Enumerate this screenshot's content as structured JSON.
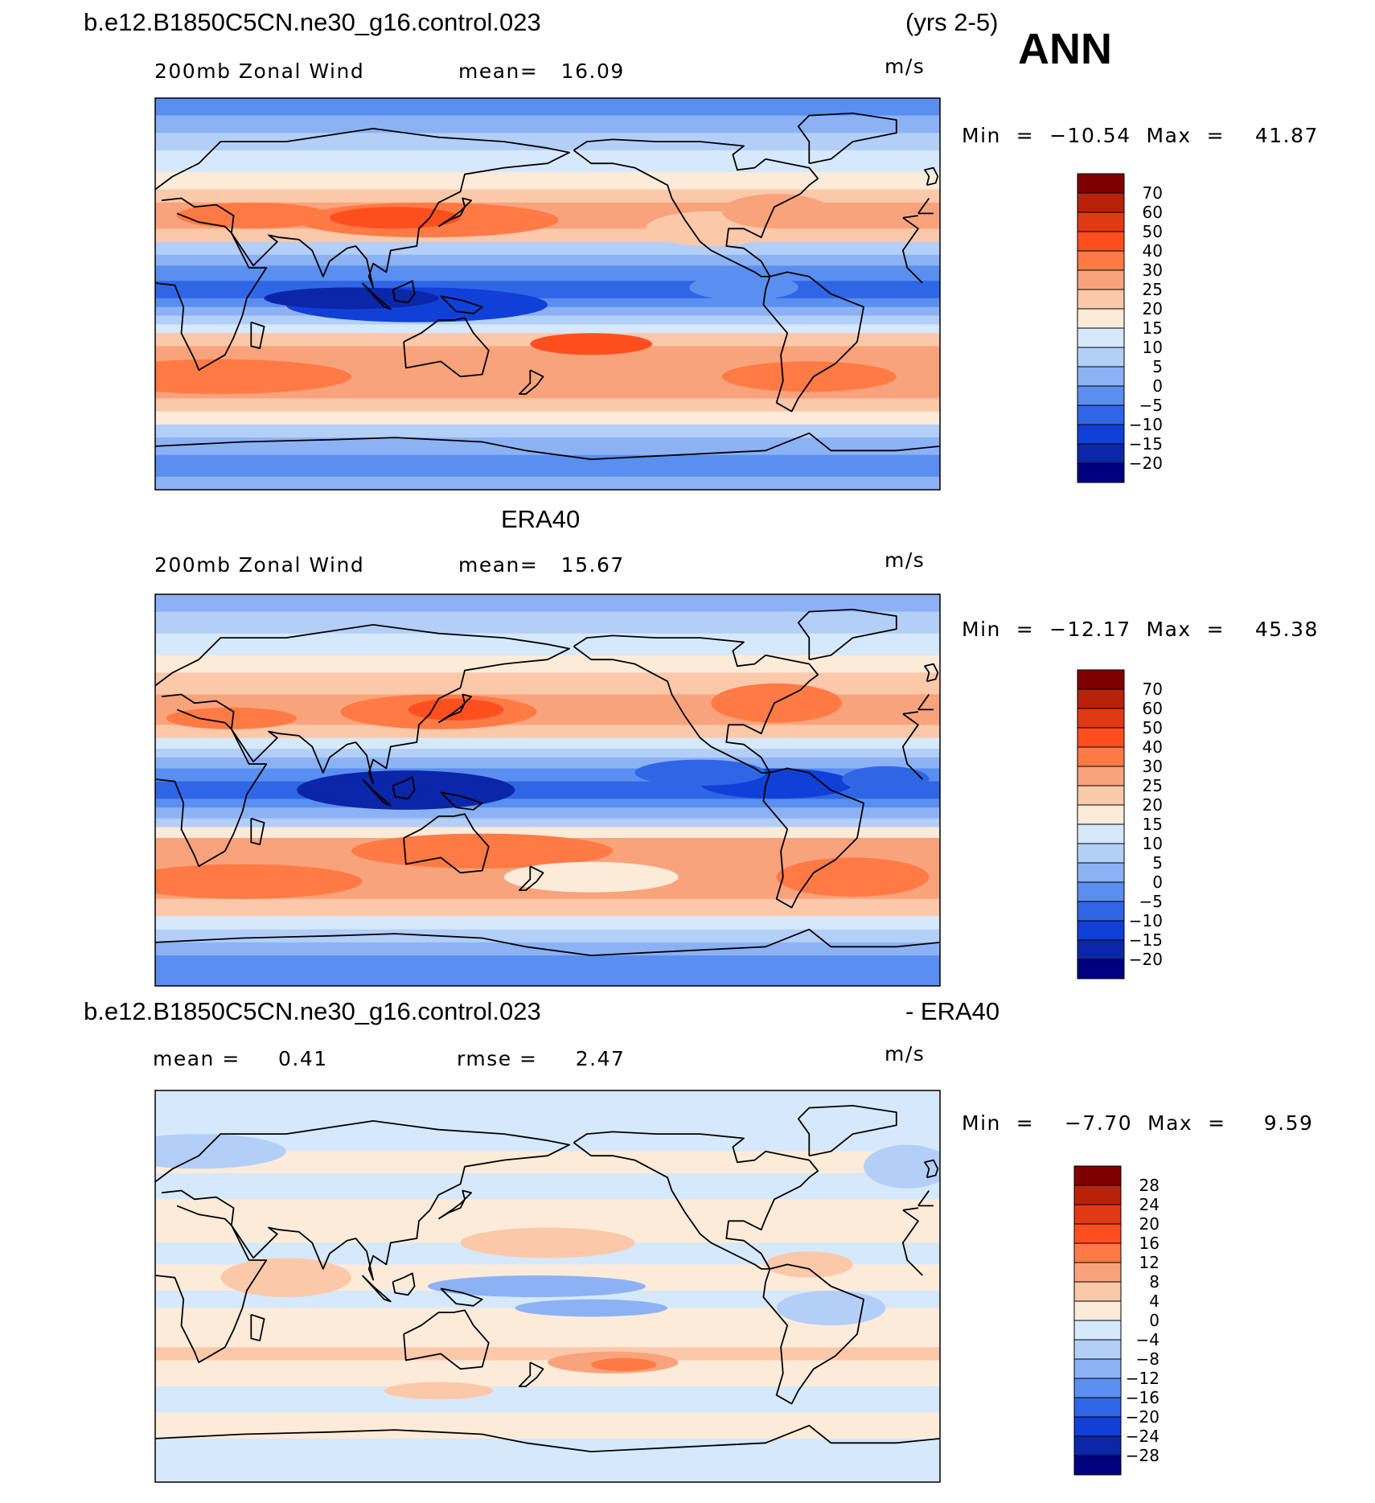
{
  "header": {
    "case_name": "b.e12.B1850C5CN.ne30_g16.control.023",
    "years": "(yrs 2-5)",
    "season": "ANN"
  },
  "panels": [
    {
      "id": "model",
      "title": "",
      "left_label": "200mb Zonal Wind",
      "mid_label": "mean=   16.09",
      "units": "m/s",
      "minmax": "Min  =  −10.54  Max  =    41.87"
    },
    {
      "id": "obs",
      "title": "ERA40",
      "left_label": "200mb Zonal Wind",
      "mid_label": "mean=   15.67",
      "units": "m/s",
      "minmax": "Min  =  −12.17  Max  =    45.38"
    },
    {
      "id": "diff",
      "title_left": "b.e12.B1850C5CN.ne30_g16.control.023",
      "title_right": "- ERA40",
      "left_label": "mean =     0.41",
      "mid_label": "rmse =     2.47",
      "units": "m/s",
      "minmax": "Min  =    −7.70  Max  =     9.59"
    }
  ],
  "chart_data": [
    {
      "type": "heatmap",
      "title": "200mb Zonal Wind",
      "subtitle": "b.e12.B1850C5CN.ne30_g16.control.023 (yrs 2-5) ANN",
      "units": "m/s",
      "mean": 16.09,
      "min": -10.54,
      "max": 41.87,
      "colorbar_levels": [
        70,
        60,
        50,
        40,
        30,
        25,
        20,
        15,
        10,
        5,
        0,
        -5,
        -10,
        -15,
        -20
      ],
      "colorbar_labels": [
        "70",
        "60",
        "50",
        "40",
        "30",
        "25",
        "20",
        "15",
        "10",
        "5",
        "0",
        "−5",
        "−10",
        "−15",
        "−20"
      ],
      "colors": [
        "#800000",
        "#b8220a",
        "#e03a12",
        "#ff4f1f",
        "#ff7a45",
        "#f9a37c",
        "#fcc8aa",
        "#fdebd9",
        "#d6e8fb",
        "#b3cff8",
        "#8cb2f5",
        "#5a8ef0",
        "#2f66e6",
        "#1040d8",
        "#0b26a8",
        "#000080"
      ]
    },
    {
      "type": "heatmap",
      "title": "ERA40 200mb Zonal Wind",
      "units": "m/s",
      "mean": 15.67,
      "min": -12.17,
      "max": 45.38,
      "colorbar_levels": [
        70,
        60,
        50,
        40,
        30,
        25,
        20,
        15,
        10,
        5,
        0,
        -5,
        -10,
        -15,
        -20
      ],
      "colorbar_labels": [
        "70",
        "60",
        "50",
        "40",
        "30",
        "25",
        "20",
        "15",
        "10",
        "5",
        "0",
        "−5",
        "−10",
        "−15",
        "−20"
      ],
      "colors": [
        "#800000",
        "#b8220a",
        "#e03a12",
        "#ff4f1f",
        "#ff7a45",
        "#f9a37c",
        "#fcc8aa",
        "#fdebd9",
        "#d6e8fb",
        "#b3cff8",
        "#8cb2f5",
        "#5a8ef0",
        "#2f66e6",
        "#1040d8",
        "#0b26a8",
        "#000080"
      ]
    },
    {
      "type": "heatmap",
      "title": "b.e12.B1850C5CN.ne30_g16.control.023 - ERA40",
      "units": "m/s",
      "mean": 0.41,
      "rmse": 2.47,
      "min": -7.7,
      "max": 9.59,
      "colorbar_levels": [
        28,
        24,
        20,
        16,
        12,
        8,
        4,
        0,
        -4,
        -8,
        -12,
        -16,
        -20,
        -24,
        -28
      ],
      "colorbar_labels": [
        "28",
        "24",
        "20",
        "16",
        "12",
        "8",
        "4",
        "0",
        "−4",
        "−8",
        "−12",
        "−16",
        "−20",
        "−24",
        "−28"
      ],
      "colors": [
        "#800000",
        "#b8220a",
        "#e03a12",
        "#ff4f1f",
        "#ff7a45",
        "#f9a37c",
        "#fcc8aa",
        "#fdebd9",
        "#d6e8fb",
        "#b3cff8",
        "#8cb2f5",
        "#5a8ef0",
        "#2f66e6",
        "#1040d8",
        "#0b26a8",
        "#000080"
      ]
    }
  ]
}
